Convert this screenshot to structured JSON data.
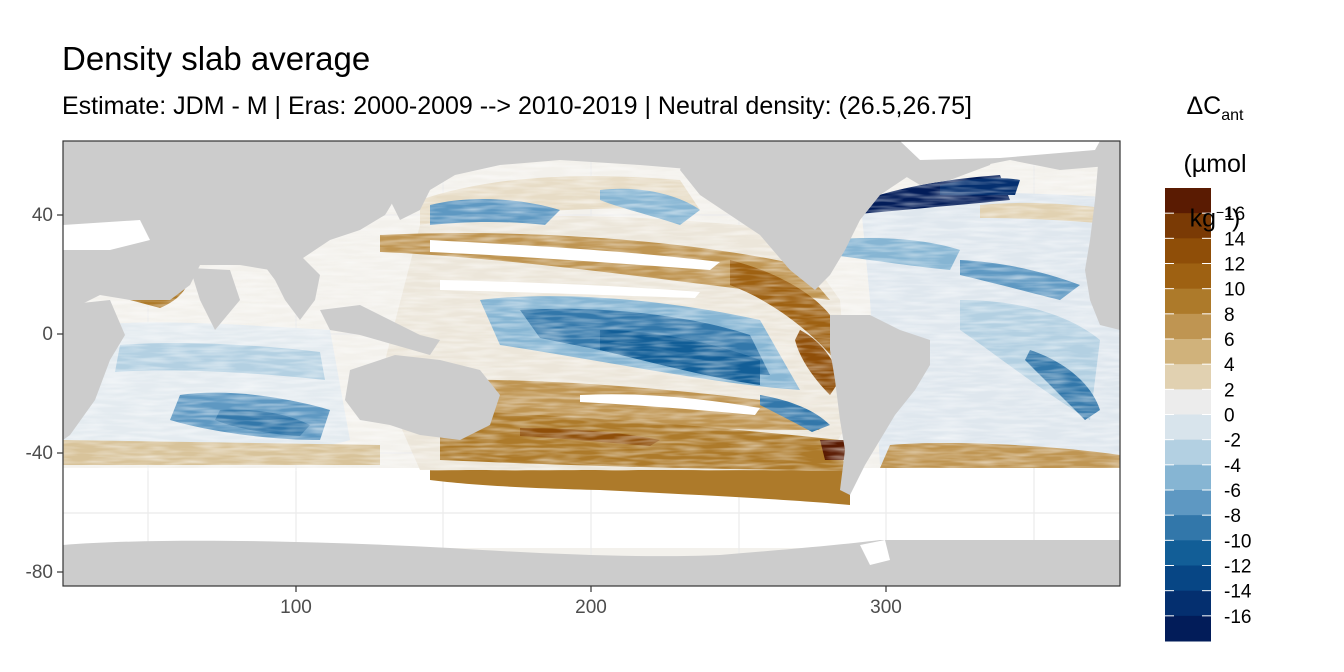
{
  "title": "Density slab average",
  "subtitle": "Estimate: JDM - M | Eras: 2000-2009 --> 2010-2019 | Neutral density: (26.5,26.75]",
  "legend": {
    "title_main": "ΔC",
    "title_sub": "ant",
    "unit_open": "(µmol kg",
    "unit_sup": "−1",
    "unit_close": ")",
    "labels": [
      "16",
      "14",
      "12",
      "10",
      "8",
      "6",
      "4",
      "2",
      "0",
      "-2",
      "-4",
      "-6",
      "-8",
      "-10",
      "-12",
      "-14",
      "-16"
    ],
    "colors": [
      "#5a1b02",
      "#7a3a05",
      "#8f4e08",
      "#9e6112",
      "#ad7a2a",
      "#bf9552",
      "#d0b27b",
      "#e1d1b1",
      "#ececec",
      "#d8e4ec",
      "#b3d0e2",
      "#86b5d3",
      "#5e98c2",
      "#3277aa",
      "#125e97",
      "#074685",
      "#042f6f",
      "#021c59"
    ]
  },
  "map": {
    "land_color": "#cccccc",
    "nodata_color": "#ffffff",
    "x_ticks": [
      "100",
      "200",
      "300"
    ],
    "y_ticks": [
      "40",
      "0",
      "-40",
      "-80"
    ],
    "xlim": [
      20,
      380
    ],
    "ylim": [
      -85,
      65
    ]
  }
}
